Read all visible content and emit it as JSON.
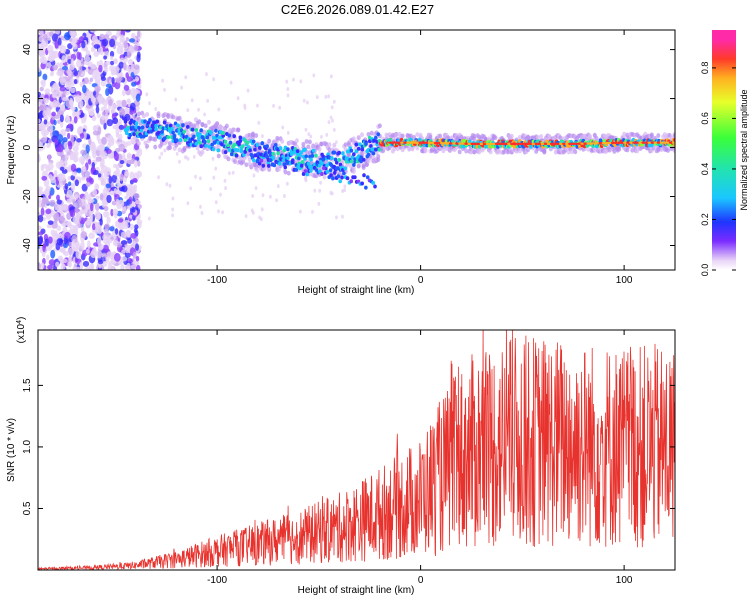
{
  "title": "C2E6.2026.089.01.42.E27",
  "chart_data": [
    {
      "type": "heatmap",
      "name": "spectrogram",
      "xlabel": "Height of straight line (km)",
      "ylabel": "Frequency (Hz)",
      "xlim": [
        -188,
        125
      ],
      "ylim": [
        -50,
        48
      ],
      "x_ticks": [
        -100,
        0,
        100
      ],
      "y_ticks": [
        -40,
        -20,
        0,
        20,
        40
      ],
      "colorbar": {
        "label": "Normalized spectral amplitude",
        "range": [
          0,
          0.95
        ],
        "ticks": [
          0.0,
          0.2,
          0.4,
          0.6,
          0.8
        ]
      },
      "ridge": {
        "x": [
          -140,
          -120,
          -100,
          -80,
          -60,
          -40,
          -20,
          0,
          25,
          50,
          75,
          100,
          125
        ],
        "y": [
          8,
          6,
          3,
          -2,
          -4,
          -6,
          2,
          2,
          1.5,
          1.5,
          1.5,
          2,
          2
        ]
      }
    },
    {
      "type": "line",
      "name": "snr",
      "title_exponent": "(x10",
      "exponent": "4",
      "exponent_close": ")",
      "xlabel": "Height of straight line (km)",
      "ylabel": "SNR (10 * v/v)",
      "xlim": [
        -188,
        125
      ],
      "ylim": [
        0,
        1.95
      ],
      "x_ticks": [
        -100,
        0,
        100
      ],
      "y_ticks": [
        0.5,
        1.0,
        1.5
      ],
      "color": "#e8322d",
      "envelope": {
        "x": [
          -188,
          -160,
          -140,
          -120,
          -100,
          -80,
          -60,
          -40,
          -20,
          0,
          10,
          20,
          30,
          50,
          75,
          100,
          125
        ],
        "y": [
          0.01,
          0.02,
          0.04,
          0.09,
          0.16,
          0.22,
          0.28,
          0.36,
          0.48,
          0.62,
          0.8,
          0.95,
          1.05,
          1.1,
          1.08,
          1.05,
          1.05
        ]
      }
    }
  ]
}
